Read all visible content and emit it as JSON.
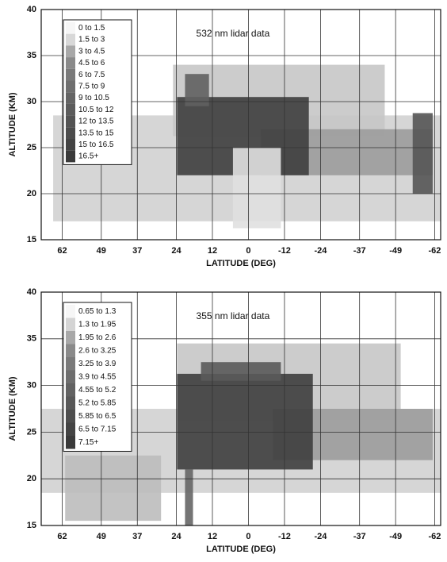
{
  "chart_data": [
    {
      "type": "curtain",
      "annotation": "532 nm lidar data",
      "x_label": "LATITUDE (DEG)",
      "y_label": "ALTITUDE (KM)",
      "xlim": [
        69,
        -64
      ],
      "xticks": [
        62,
        49,
        37,
        24,
        12,
        0,
        -12,
        -24,
        -37,
        -49,
        -62
      ],
      "ylim": [
        15,
        40
      ],
      "yticks": [
        15,
        20,
        25,
        30,
        35,
        40
      ],
      "grid": true,
      "legend": {
        "labels": [
          "0 to 1.5",
          "1.5 to 3",
          "3 to 4.5",
          "4.5 to 6",
          "6 to 7.5",
          "7.5 to 9",
          "9 to 10.5",
          "10.5 to 12",
          "12 to 13.5",
          "13.5 to 15",
          "15 to 16.5",
          "16.5+"
        ],
        "colors": [
          "#f6f6f6",
          "#d8d8d8",
          "#a8a8a8",
          "#8a8a8a",
          "#7a7a7a",
          "#6e6e6e",
          "#646464",
          "#5c5c5c",
          "#545454",
          "#4c4c4c",
          "#444444",
          "#3a3a3a"
        ]
      }
    },
    {
      "type": "curtain",
      "annotation": "355 nm lidar data",
      "x_label": "LATITUDE (DEG)",
      "y_label": "ALTITUDE (KM)",
      "xlim": [
        69,
        -64
      ],
      "xticks": [
        62,
        49,
        37,
        24,
        12,
        0,
        -12,
        -24,
        -37,
        -49,
        -62
      ],
      "ylim": [
        15,
        40
      ],
      "yticks": [
        15,
        20,
        25,
        30,
        35,
        40
      ],
      "grid": true,
      "legend": {
        "labels": [
          "0.65 to 1.3",
          "1.3 to 1.95",
          "1.95 to 2.6",
          "2.6 to 3.25",
          "3.25 to 3.9",
          "3.9 to 4.55",
          "4.55 to 5.2",
          "5.2 to 5.85",
          "5.85 to 6.5",
          "6.5 to 7.15",
          "7.15+"
        ],
        "colors": [
          "#f6f6f6",
          "#d4d4d4",
          "#a8a8a8",
          "#8a8a8a",
          "#7a7a7a",
          "#6e6e6e",
          "#626262",
          "#585858",
          "#4e4e4e",
          "#444444",
          "#3a3a3a"
        ]
      }
    }
  ]
}
